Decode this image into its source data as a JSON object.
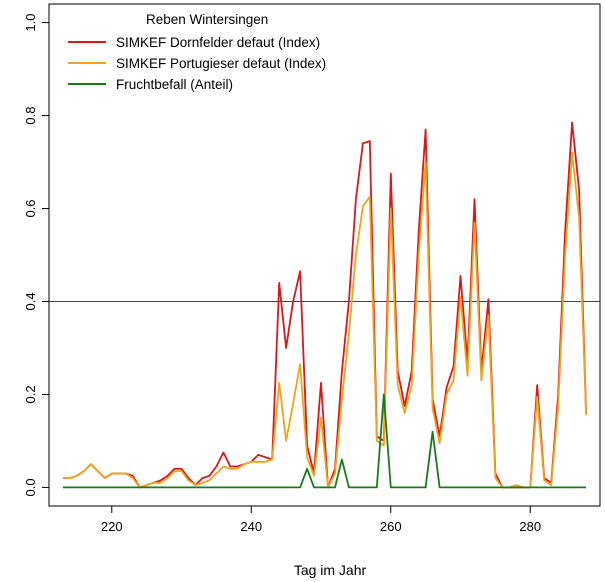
{
  "chart_data": {
    "type": "line",
    "title": "",
    "xlabel": "Tag im Jahr",
    "ylabel": "",
    "xlim": [
      211,
      290
    ],
    "ylim": [
      -0.04,
      1.04
    ],
    "x_ticks": [
      220,
      240,
      260,
      280
    ],
    "y_ticks": [
      0.0,
      0.2,
      0.4,
      0.6,
      0.8,
      1.0
    ],
    "y_tick_labels": [
      "0.0",
      "0.2",
      "0.4",
      "0.6",
      "0.8",
      "1.0"
    ],
    "hline": 0.4,
    "grid": false,
    "legend": {
      "title": "Reben Wintersingen",
      "position": "top-left"
    },
    "series": [
      {
        "name": "SIMKEF Dornfelder defaut (Index)",
        "color": "#d7191c",
        "x": [
          213,
          214,
          215,
          216,
          217,
          218,
          219,
          220,
          221,
          222,
          223,
          224,
          225,
          226,
          227,
          228,
          229,
          230,
          231,
          232,
          233,
          234,
          235,
          236,
          237,
          238,
          239,
          240,
          241,
          242,
          243,
          244,
          245,
          246,
          247,
          248,
          249,
          250,
          251,
          252,
          253,
          254,
          255,
          256,
          257,
          258,
          259,
          260,
          261,
          262,
          263,
          264,
          265,
          266,
          267,
          268,
          269,
          270,
          271,
          272,
          273,
          274,
          275,
          276,
          277,
          278,
          279,
          280,
          281,
          282,
          283,
          284,
          285,
          286,
          287,
          288
        ],
        "values": [
          0.02,
          0.02,
          0.025,
          0.035,
          0.05,
          0.035,
          0.02,
          0.03,
          0.03,
          0.03,
          0.025,
          0.0,
          0.005,
          0.01,
          0.015,
          0.025,
          0.04,
          0.04,
          0.02,
          0.005,
          0.02,
          0.025,
          0.045,
          0.075,
          0.045,
          0.045,
          0.05,
          0.055,
          0.07,
          0.065,
          0.06,
          0.44,
          0.3,
          0.4,
          0.465,
          0.09,
          0.03,
          0.225,
          0.0,
          0.04,
          0.25,
          0.4,
          0.62,
          0.74,
          0.745,
          0.11,
          0.1,
          0.675,
          0.25,
          0.175,
          0.25,
          0.55,
          0.77,
          0.19,
          0.11,
          0.215,
          0.26,
          0.455,
          0.27,
          0.62,
          0.25,
          0.405,
          0.03,
          0.0,
          0.0,
          0.0,
          0.0,
          0.0,
          0.22,
          0.02,
          0.01,
          0.2,
          0.55,
          0.785,
          0.64,
          0.16
        ]
      },
      {
        "name": "SIMKEF Portugieser defaut (Index)",
        "color": "#f0a31e",
        "x": [
          213,
          214,
          215,
          216,
          217,
          218,
          219,
          220,
          221,
          222,
          223,
          224,
          225,
          226,
          227,
          228,
          229,
          230,
          231,
          232,
          233,
          234,
          235,
          236,
          237,
          238,
          239,
          240,
          241,
          242,
          243,
          244,
          245,
          246,
          247,
          248,
          249,
          250,
          251,
          252,
          253,
          254,
          255,
          256,
          257,
          258,
          259,
          260,
          261,
          262,
          263,
          264,
          265,
          266,
          267,
          268,
          269,
          270,
          271,
          272,
          273,
          274,
          275,
          276,
          277,
          278,
          279,
          280,
          281,
          282,
          283,
          284,
          285,
          286,
          287,
          288
        ],
        "values": [
          0.02,
          0.02,
          0.025,
          0.035,
          0.05,
          0.035,
          0.02,
          0.03,
          0.03,
          0.03,
          0.02,
          0.0,
          0.005,
          0.01,
          0.01,
          0.02,
          0.035,
          0.035,
          0.015,
          0.005,
          0.01,
          0.015,
          0.03,
          0.045,
          0.04,
          0.04,
          0.05,
          0.055,
          0.055,
          0.055,
          0.06,
          0.225,
          0.1,
          0.18,
          0.265,
          0.065,
          0.025,
          0.15,
          0.0,
          0.03,
          0.19,
          0.33,
          0.5,
          0.605,
          0.625,
          0.1,
          0.09,
          0.6,
          0.22,
          0.16,
          0.22,
          0.5,
          0.7,
          0.17,
          0.095,
          0.2,
          0.23,
          0.41,
          0.24,
          0.57,
          0.23,
          0.37,
          0.02,
          0.0,
          0.0,
          0.005,
          0.0,
          0.0,
          0.195,
          0.015,
          0.005,
          0.175,
          0.5,
          0.72,
          0.58,
          0.155
        ]
      },
      {
        "name": "Fruchtbefall (Anteil)",
        "color": "#1a7a1a",
        "x": [
          213,
          247,
          248,
          249,
          252,
          253,
          254,
          258,
          259,
          260,
          265,
          266,
          267,
          288
        ],
        "values": [
          0.0,
          0.0,
          0.04,
          0.0,
          0.0,
          0.06,
          0.0,
          0.0,
          0.2,
          0.0,
          0.0,
          0.12,
          0.0,
          0.0
        ]
      }
    ]
  }
}
